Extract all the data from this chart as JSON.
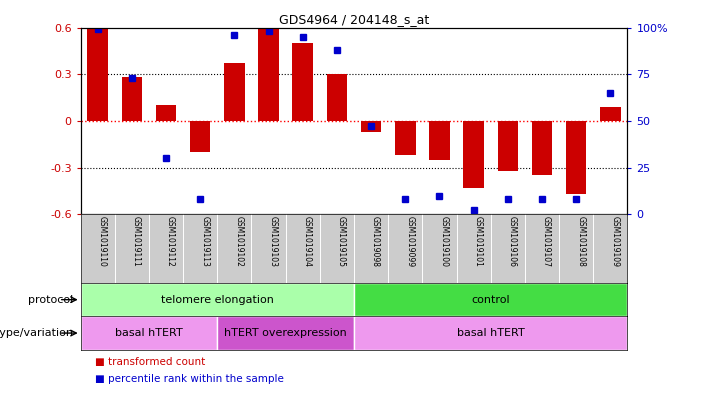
{
  "title": "GDS4964 / 204148_s_at",
  "samples": [
    "GSM1019110",
    "GSM1019111",
    "GSM1019112",
    "GSM1019113",
    "GSM1019102",
    "GSM1019103",
    "GSM1019104",
    "GSM1019105",
    "GSM1019098",
    "GSM1019099",
    "GSM1019100",
    "GSM1019101",
    "GSM1019106",
    "GSM1019107",
    "GSM1019108",
    "GSM1019109"
  ],
  "bar_values": [
    0.59,
    0.28,
    0.1,
    -0.2,
    0.37,
    0.59,
    0.5,
    0.3,
    -0.07,
    -0.22,
    -0.25,
    -0.43,
    -0.32,
    -0.35,
    -0.47,
    0.09
  ],
  "dot_values": [
    99,
    73,
    30,
    8,
    96,
    98,
    95,
    88,
    47,
    8,
    10,
    2,
    8,
    8,
    8,
    65
  ],
  "bar_color": "#cc0000",
  "dot_color": "#0000cc",
  "ylim_left": [
    -0.6,
    0.6
  ],
  "ylim_right": [
    0,
    100
  ],
  "yticks_left": [
    -0.6,
    -0.3,
    0.0,
    0.3,
    0.6
  ],
  "ytick_labels_left": [
    "-0.6",
    "-0.3",
    "0",
    "0.3",
    "0.6"
  ],
  "yticks_right": [
    0,
    25,
    50,
    75,
    100
  ],
  "ytick_labels_right": [
    "0",
    "25",
    "50",
    "75",
    "100%"
  ],
  "hlines": [
    0.3,
    -0.3
  ],
  "hline_zero_color": "#ff0000",
  "hline_dotted_color": "#000000",
  "protocol_label": "protocol",
  "genotype_label": "genotype/variation",
  "protocol_groups": [
    {
      "label": "telomere elongation",
      "start": 0,
      "end": 7,
      "color": "#aaffaa"
    },
    {
      "label": "control",
      "start": 8,
      "end": 15,
      "color": "#44dd44"
    }
  ],
  "genotype_groups": [
    {
      "label": "basal hTERT",
      "start": 0,
      "end": 3,
      "color": "#ee99ee"
    },
    {
      "label": "hTERT overexpression",
      "start": 4,
      "end": 7,
      "color": "#cc55cc"
    },
    {
      "label": "basal hTERT",
      "start": 8,
      "end": 15,
      "color": "#ee99ee"
    }
  ],
  "legend_bar_label": "transformed count",
  "legend_dot_label": "percentile rank within the sample",
  "bg_color": "#ffffff",
  "tick_label_area_color": "#cccccc",
  "border_color": "#000000"
}
